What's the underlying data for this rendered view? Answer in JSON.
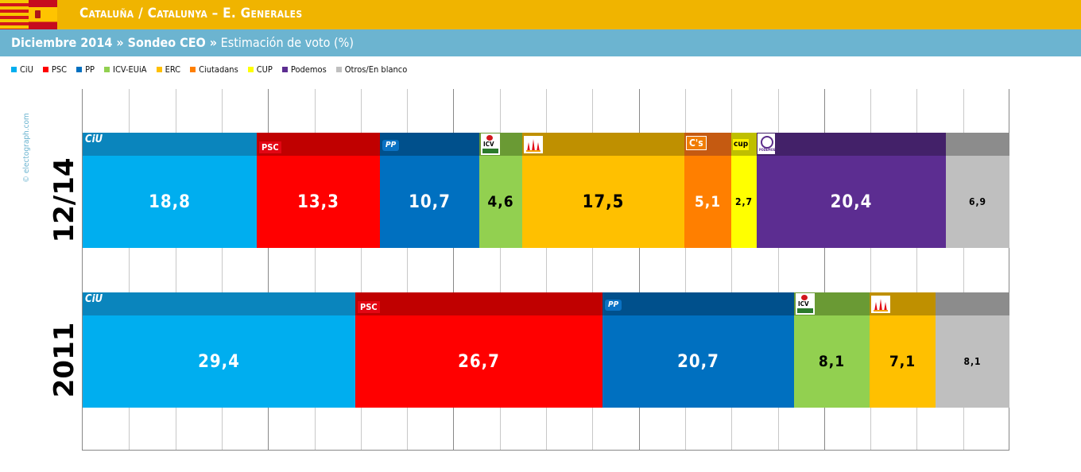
{
  "header": {
    "title": "Cataluña / Catalunya – E. Generales",
    "subtitle_bold": "Diciembre 2014 » Sondeo CEO »",
    "subtitle_rest": " Estimación de voto (%)"
  },
  "watermark": "© electograph.com",
  "legend": [
    {
      "label": "CiU",
      "color": "#00aeef"
    },
    {
      "label": "PSC",
      "color": "#ff0000"
    },
    {
      "label": "PP",
      "color": "#0070c0"
    },
    {
      "label": "ICV-EUiA",
      "color": "#92d050"
    },
    {
      "label": "ERC",
      "color": "#ffc000"
    },
    {
      "label": "Ciutadans",
      "color": "#ff7f00"
    },
    {
      "label": "CUP",
      "color": "#ffff00"
    },
    {
      "label": "Podemos",
      "color": "#5c2d91"
    },
    {
      "label": "Otros/En blanco",
      "color": "#bfbfbf"
    }
  ],
  "chart_data": {
    "type": "bar",
    "orientation": "horizontal",
    "stacked": true,
    "title": "Cataluña / Catalunya – E. Generales",
    "subtitle": "Diciembre 2014 » Sondeo CEO » Estimación de voto (%)",
    "xlim": [
      0,
      100
    ],
    "grid": true,
    "legend_position": "top-left",
    "rows": [
      {
        "label": "12/14",
        "segments": [
          {
            "party": "CiU",
            "value": 18.8,
            "display": "18,8",
            "color": "#00aeef",
            "band": "#0a85bd",
            "logo": "ciu",
            "value_color": "#ffffff",
            "font_size": 22
          },
          {
            "party": "PSC",
            "value": 13.3,
            "display": "13,3",
            "color": "#ff0000",
            "band": "#c00000",
            "logo": "psc",
            "value_color": "#ffffff",
            "font_size": 22
          },
          {
            "party": "PP",
            "value": 10.7,
            "display": "10,7",
            "color": "#0070c0",
            "band": "#00508c",
            "logo": "pp",
            "value_color": "#ffffff",
            "font_size": 22
          },
          {
            "party": "ICV-EUiA",
            "value": 4.6,
            "display": "4,6",
            "color": "#92d050",
            "band": "#6a9a34",
            "logo": "icv",
            "value_color": "#000000",
            "font_size": 19
          },
          {
            "party": "ERC",
            "value": 17.5,
            "display": "17,5",
            "color": "#ffc000",
            "band": "#bf9000",
            "logo": "erc",
            "value_color": "#000000",
            "font_size": 22
          },
          {
            "party": "Ciutadans",
            "value": 5.1,
            "display": "5,1",
            "color": "#ff7f00",
            "band": "#c55a11",
            "logo": "cs",
            "value_color": "#ffffff",
            "font_size": 19
          },
          {
            "party": "CUP",
            "value": 2.7,
            "display": "2,7",
            "color": "#ffff00",
            "band": "#bfbf00",
            "logo": "cup",
            "value_color": "#000000",
            "font_size": 12
          },
          {
            "party": "Podemos",
            "value": 20.4,
            "display": "20,4",
            "color": "#5c2d91",
            "band": "#432169",
            "logo": "podemos",
            "value_color": "#ffffff",
            "font_size": 22
          },
          {
            "party": "Otros/En blanco",
            "value": 6.9,
            "display": "6,9",
            "color": "#bfbfbf",
            "band": "#8c8c8c",
            "logo": "",
            "value_color": "#000000",
            "font_size": 12
          }
        ]
      },
      {
        "label": "2011",
        "segments": [
          {
            "party": "CiU",
            "value": 29.4,
            "display": "29,4",
            "color": "#00aeef",
            "band": "#0a85bd",
            "logo": "ciu",
            "value_color": "#ffffff",
            "font_size": 22
          },
          {
            "party": "PSC",
            "value": 26.7,
            "display": "26,7",
            "color": "#ff0000",
            "band": "#c00000",
            "logo": "psc",
            "value_color": "#ffffff",
            "font_size": 22
          },
          {
            "party": "PP",
            "value": 20.7,
            "display": "20,7",
            "color": "#0070c0",
            "band": "#00508c",
            "logo": "pp",
            "value_color": "#ffffff",
            "font_size": 22
          },
          {
            "party": "ICV-EUiA",
            "value": 8.1,
            "display": "8,1",
            "color": "#92d050",
            "band": "#6a9a34",
            "logo": "icv",
            "value_color": "#000000",
            "font_size": 19
          },
          {
            "party": "ERC",
            "value": 7.1,
            "display": "7,1",
            "color": "#ffc000",
            "band": "#bf9000",
            "logo": "erc",
            "value_color": "#000000",
            "font_size": 19
          },
          {
            "party": "Otros/En blanco",
            "value": 8.1,
            "display": "8,1",
            "color": "#bfbfbf",
            "band": "#8c8c8c",
            "logo": "",
            "value_color": "#000000",
            "font_size": 12
          }
        ]
      }
    ]
  }
}
